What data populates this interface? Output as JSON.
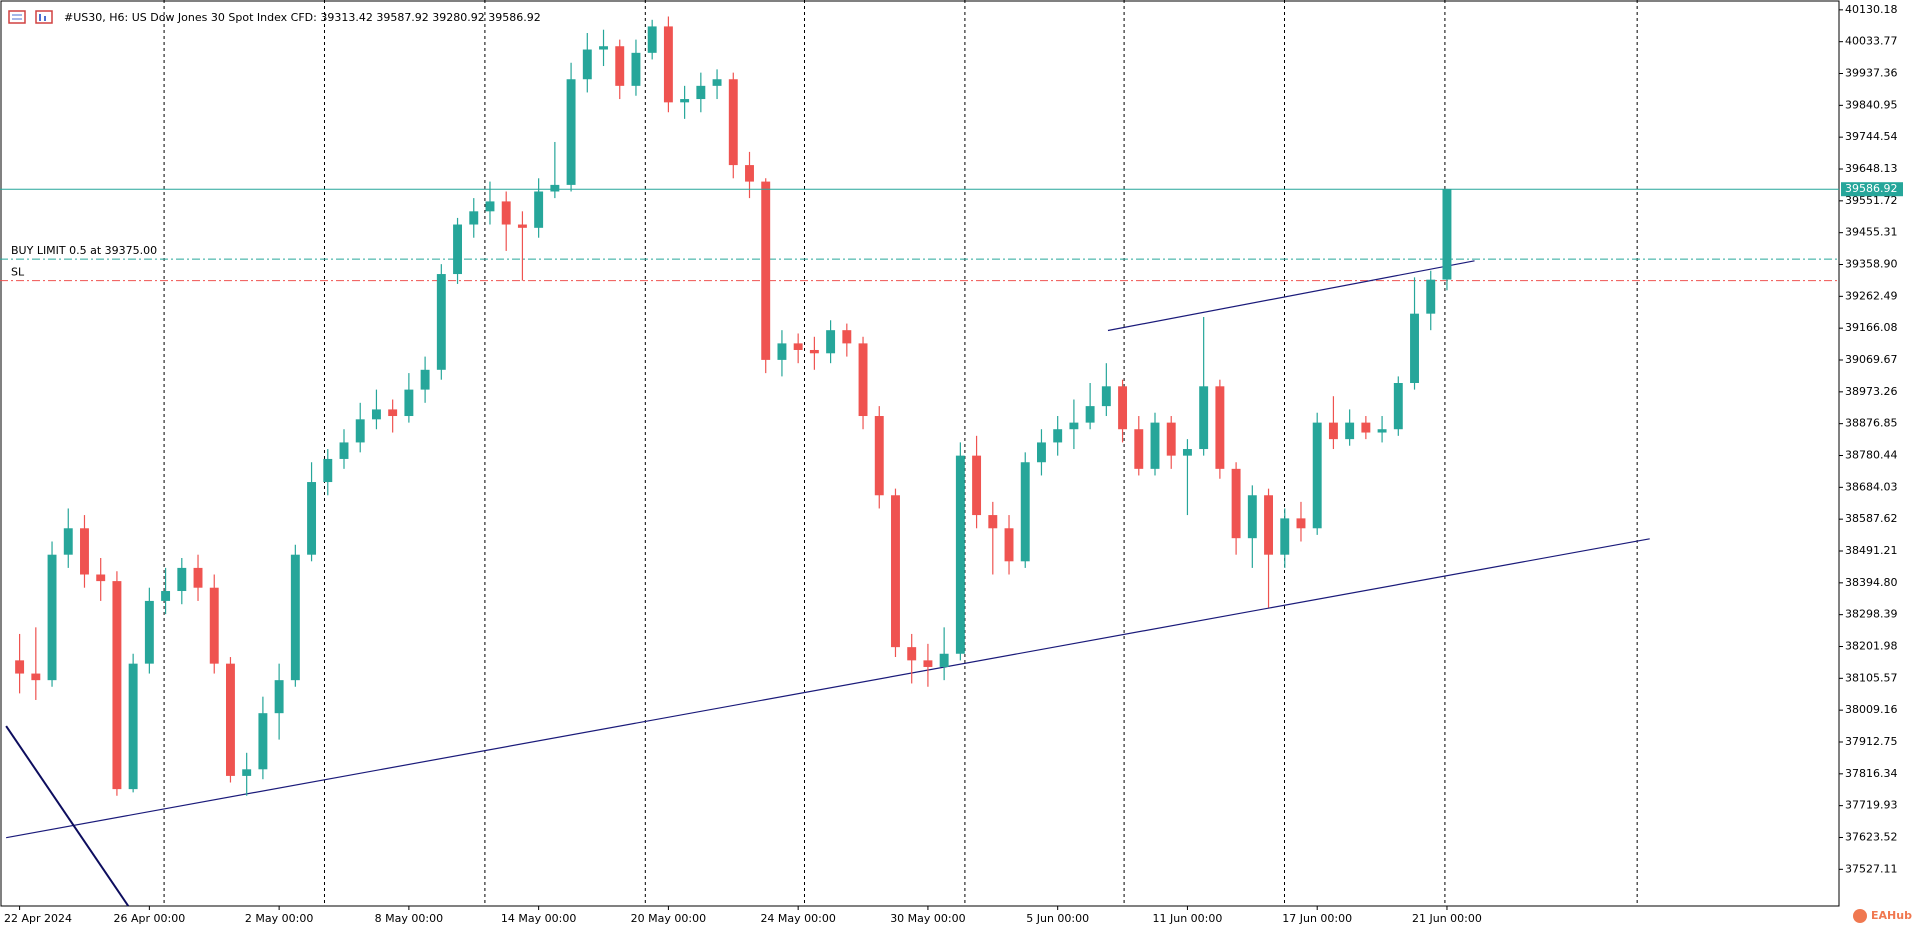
{
  "chart_data": {
    "type": "candlestick",
    "title": "#US30, H6:  US Dow Jones 30 Spot Index CFD:  39313.42 39587.92 39280.92 39586.92",
    "categories": [
      "22 Apr 2024",
      null,
      null,
      null,
      null,
      null,
      null,
      null,
      "26 Apr 00:00",
      null,
      null,
      null,
      null,
      null,
      null,
      null,
      "2 May 00:00",
      null,
      null,
      null,
      null,
      null,
      null,
      null,
      "8 May 00:00",
      null,
      null,
      null,
      null,
      null,
      null,
      null,
      "14 May 00:00",
      null,
      null,
      null,
      null,
      null,
      null,
      null,
      "20 May 00:00",
      null,
      null,
      null,
      null,
      null,
      null,
      null,
      "24 May 00:00",
      null,
      null,
      null,
      null,
      null,
      null,
      null,
      "30 May 00:00",
      null,
      null,
      null,
      null,
      null,
      null,
      null,
      "5 Jun 00:00",
      null,
      null,
      null,
      null,
      null,
      null,
      null,
      "11 Jun 00:00",
      null,
      null,
      null,
      null,
      null,
      null,
      null,
      "17 Jun 00:00",
      null,
      null,
      null,
      null,
      null,
      null,
      null,
      "21 Jun 00:00"
    ],
    "open": [
      38160,
      38120,
      38100,
      38480,
      38560,
      38420,
      38400,
      37770,
      38150,
      38340,
      38370,
      38440,
      38380,
      38150,
      37810,
      37830,
      38000,
      38100,
      38480,
      38700,
      38770,
      38820,
      38890,
      38920,
      38900,
      38980,
      39040,
      39330,
      39480,
      39520,
      39550,
      39480,
      39470,
      39580,
      39600,
      39920,
      40010,
      40020,
      39900,
      40000,
      40080,
      39850,
      39860,
      39900,
      39920,
      39660,
      39610,
      39070,
      39120,
      39100,
      39090,
      39160,
      39120,
      38900,
      38660,
      38200,
      38160,
      38140,
      38180,
      38780,
      38600,
      38560,
      38460,
      38760,
      38820,
      38860,
      38880,
      38930,
      38990,
      38860,
      38740,
      38880,
      38780,
      38800,
      38990,
      38740,
      38530,
      38660,
      38480,
      38590,
      38560,
      38880,
      38830,
      38880,
      38850,
      38860,
      39000,
      39210,
      39313.42
    ],
    "high": [
      38240,
      38260,
      38520,
      38620,
      38600,
      38470,
      38430,
      38180,
      38380,
      38440,
      38470,
      38480,
      38420,
      38170,
      37880,
      38050,
      38150,
      38510,
      38760,
      38800,
      38860,
      38940,
      38980,
      38950,
      39030,
      39080,
      39360,
      39500,
      39560,
      39610,
      39580,
      39520,
      39620,
      39730,
      39970,
      40060,
      40070,
      40040,
      40040,
      40100,
      40110,
      39900,
      39940,
      39950,
      39940,
      39700,
      39620,
      39160,
      39150,
      39140,
      39190,
      39180,
      39140,
      38930,
      38680,
      38240,
      38210,
      38260,
      38820,
      38840,
      38640,
      38600,
      38790,
      38860,
      38900,
      38950,
      39000,
      39060,
      39010,
      38900,
      38910,
      38900,
      38830,
      39200,
      39010,
      38760,
      38690,
      38680,
      38620,
      38640,
      38910,
      38960,
      38920,
      38900,
      38900,
      39020,
      39320,
      39340,
      39587.92
    ],
    "low": [
      38060,
      38040,
      38080,
      38440,
      38380,
      38340,
      37750,
      37760,
      38120,
      38300,
      38330,
      38340,
      38120,
      37790,
      37750,
      37800,
      37920,
      38080,
      38460,
      38660,
      38740,
      38790,
      38860,
      38850,
      38880,
      38940,
      39010,
      39300,
      39440,
      39480,
      39400,
      39310,
      39440,
      39560,
      39580,
      39880,
      39960,
      39860,
      39870,
      39980,
      39820,
      39800,
      39820,
      39860,
      39620,
      39560,
      39030,
      39020,
      39060,
      39040,
      39060,
      39080,
      38860,
      38620,
      38170,
      38090,
      38080,
      38100,
      38160,
      38560,
      38420,
      38420,
      38440,
      38720,
      38780,
      38800,
      38860,
      38900,
      38820,
      38720,
      38720,
      38740,
      38600,
      38780,
      38710,
      38480,
      38440,
      38320,
      38440,
      38520,
      38540,
      38800,
      38810,
      38830,
      38820,
      38840,
      38980,
      39160,
      39280.92
    ],
    "close": [
      38120,
      38100,
      38480,
      38560,
      38420,
      38400,
      37770,
      38150,
      38340,
      38370,
      38440,
      38380,
      38150,
      37810,
      37830,
      38000,
      38100,
      38480,
      38700,
      38770,
      38820,
      38890,
      38920,
      38900,
      38980,
      39040,
      39330,
      39480,
      39520,
      39550,
      39480,
      39470,
      39580,
      39600,
      39920,
      40010,
      40020,
      39900,
      40000,
      40080,
      39850,
      39860,
      39900,
      39920,
      39660,
      39610,
      39070,
      39120,
      39100,
      39090,
      39160,
      39120,
      38900,
      38660,
      38200,
      38160,
      38140,
      38180,
      38780,
      38600,
      38560,
      38460,
      38760,
      38820,
      38860,
      38880,
      38930,
      38990,
      38860,
      38740,
      38880,
      38780,
      38800,
      38990,
      38740,
      38530,
      38660,
      38480,
      38590,
      38560,
      38880,
      38830,
      38880,
      38850,
      38860,
      39000,
      39210,
      39313,
      39586.92
    ],
    "up_color": "#26a69a",
    "down_color": "#ef5350",
    "ylim": [
      37416,
      40160
    ],
    "yticks": [
      40130.18,
      40033.77,
      39937.36,
      39840.95,
      39744.54,
      39648.13,
      39551.72,
      39455.31,
      {
        "value": 39358.9,
        "label": "39358.90"
      },
      39262.49,
      39166.08,
      39069.67,
      38973.26,
      38876.85,
      38780.44,
      38684.03,
      38587.62,
      38491.21,
      {
        "value": 38394.8,
        "label": "38394.80"
      },
      38298.39,
      38201.98,
      38105.57,
      38009.16,
      37912.75,
      37816.34,
      37719.93,
      37623.52,
      37527.11
    ],
    "price_line": 39586.92,
    "price_color": "#26a69a",
    "orders": [
      {
        "label": "BUY LIMIT 0.5 at 39375.00",
        "price": 39375,
        "color": "#26a69a"
      },
      {
        "label": "SL",
        "price": 39310,
        "color": "#ef5350"
      }
    ],
    "trendlines": [
      {
        "x": [
          -0.83,
          100.5
        ],
        "y": [
          37623,
          38528
        ],
        "color": "#1a1a7a"
      },
      {
        "x": [
          67.1,
          89.7
        ],
        "y": [
          39159,
          39370
        ],
        "color": "#1a1a7a"
      },
      {
        "x": [
          -0.83,
          6.7
        ],
        "y": [
          37961,
          37416
        ],
        "color": "#0d0d5e"
      }
    ],
    "watermark": "EAHub"
  }
}
